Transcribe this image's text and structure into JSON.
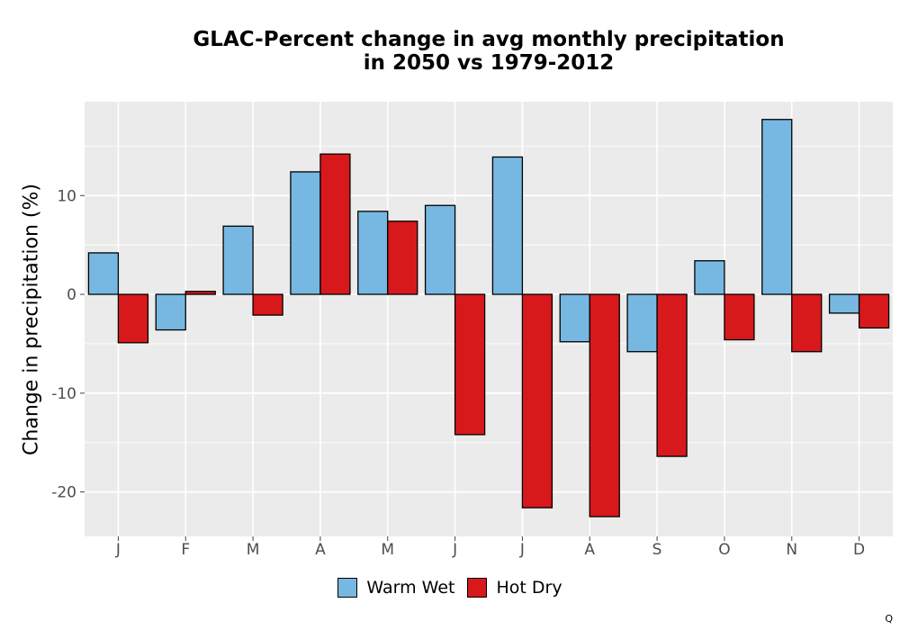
{
  "chart_data": {
    "type": "bar",
    "title_lines": [
      "GLAC-Percent change in avg monthly precipitation",
      "in 2050 vs 1979-2012"
    ],
    "ylabel": "Change in precipitation (%)",
    "xlabel": "",
    "categories": [
      "J",
      "F",
      "M",
      "A",
      "M",
      "J",
      "J",
      "A",
      "S",
      "O",
      "N",
      "D"
    ],
    "series": [
      {
        "name": "Warm Wet",
        "color": "#77b8e2",
        "values": [
          4.2,
          -3.6,
          6.9,
          12.4,
          8.4,
          9.0,
          13.9,
          -4.8,
          -5.8,
          3.4,
          17.7,
          -1.9
        ]
      },
      {
        "name": "Hot Dry",
        "color": "#d7191c",
        "values": [
          -4.9,
          0.3,
          -2.1,
          14.2,
          7.4,
          -14.2,
          -21.6,
          -22.5,
          -16.4,
          -4.6,
          -5.8,
          -3.4
        ]
      }
    ],
    "yticks": [
      -20,
      -10,
      0,
      10
    ],
    "ylim": [
      -24.5,
      19.5
    ],
    "grid": true,
    "legend_position": "bottom",
    "panel_color": "#ebebeb"
  },
  "corner_mark": "Q"
}
